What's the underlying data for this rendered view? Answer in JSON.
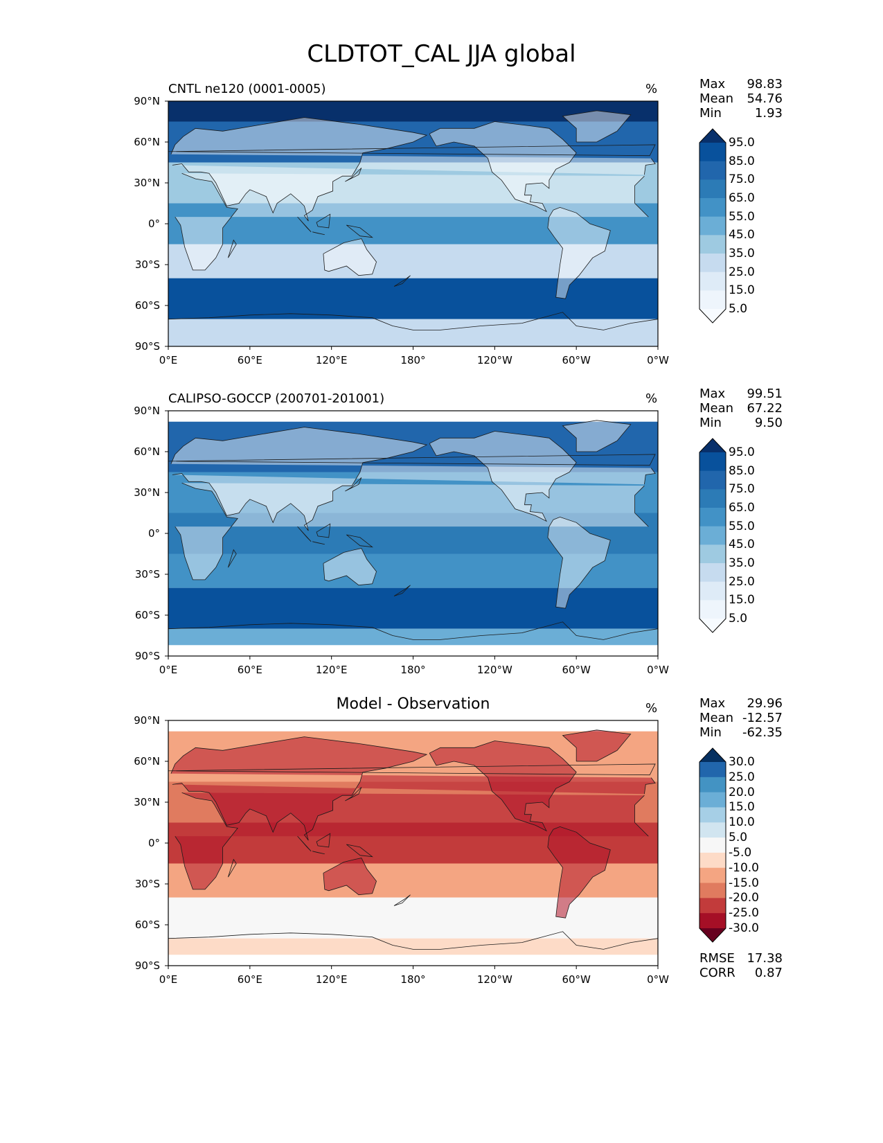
{
  "title": "CLDTOT_CAL JJA global",
  "x_ticks": [
    "0°E",
    "60°E",
    "120°E",
    "180°",
    "120°W",
    "60°W",
    "0°W"
  ],
  "y_ticks": [
    "90°N",
    "60°N",
    "30°N",
    "0°",
    "30°S",
    "60°S",
    "90°S"
  ],
  "panels": [
    {
      "title": "CNTL ne120 (0001-0005)",
      "unit": "%",
      "stats": [
        {
          "label": "Max",
          "value": "98.83"
        },
        {
          "label": "Mean",
          "value": "54.76"
        },
        {
          "label": "Min",
          "value": "1.93"
        }
      ],
      "colorbar": {
        "labels": [
          "95.0",
          "85.0",
          "75.0",
          "65.0",
          "55.0",
          "45.0",
          "35.0",
          "25.0",
          "15.0",
          "5.0"
        ],
        "colors": [
          "#08306b",
          "#08519c",
          "#2166ac",
          "#2c7bb6",
          "#4292c6",
          "#6baed6",
          "#9ecae1",
          "#c6dbef",
          "#deebf7",
          "#eef5fc",
          "#f7fbff"
        ]
      }
    },
    {
      "title": "CALIPSO-GOCCP (200701-201001)",
      "unit": "%",
      "stats": [
        {
          "label": "Max",
          "value": "99.51"
        },
        {
          "label": "Mean",
          "value": "67.22"
        },
        {
          "label": "Min",
          "value": "9.50"
        }
      ],
      "colorbar": {
        "labels": [
          "95.0",
          "85.0",
          "75.0",
          "65.0",
          "55.0",
          "45.0",
          "35.0",
          "25.0",
          "15.0",
          "5.0"
        ],
        "colors": [
          "#08306b",
          "#08519c",
          "#2166ac",
          "#2c7bb6",
          "#4292c6",
          "#6baed6",
          "#9ecae1",
          "#c6dbef",
          "#deebf7",
          "#eef5fc",
          "#f7fbff"
        ]
      }
    },
    {
      "title": "Model - Observation",
      "unit": "%",
      "stats": [
        {
          "label": "Max",
          "value": "29.96"
        },
        {
          "label": "Mean",
          "value": "-12.57"
        },
        {
          "label": "Min",
          "value": "-62.35"
        }
      ],
      "extra_stats": [
        {
          "label": "RMSE",
          "value": "17.38"
        },
        {
          "label": "CORR",
          "value": "0.87"
        }
      ],
      "colorbar": {
        "labels": [
          "30.0",
          "25.0",
          "20.0",
          "15.0",
          "10.0",
          "5.0",
          "-5.0",
          "-10.0",
          "-15.0",
          "-20.0",
          "-25.0",
          "-30.0"
        ],
        "colors": [
          "#053061",
          "#2166ac",
          "#4393c3",
          "#6baed6",
          "#a6cfe6",
          "#d1e5f0",
          "#f7f7f7",
          "#fddbc7",
          "#f4a582",
          "#e07b5f",
          "#c23b3b",
          "#a50f26",
          "#67001f"
        ]
      }
    }
  ],
  "chart_data": [
    {
      "type": "heatmap",
      "title": "CNTL ne120 (0001-0005)",
      "variable": "CLDTOT_CAL",
      "season": "JJA",
      "units": "%",
      "xlim": [
        0,
        360
      ],
      "ylim": [
        -90,
        90
      ],
      "levels": [
        5,
        15,
        25,
        35,
        45,
        55,
        65,
        75,
        85,
        95
      ],
      "stats": {
        "max": 98.83,
        "mean": 54.76,
        "min": 1.93
      },
      "bands": [
        {
          "lat_range": [
            75,
            90
          ],
          "value": 97
        },
        {
          "lat_range": [
            45,
            75
          ],
          "value": 75
        },
        {
          "lat_range": [
            15,
            45
          ],
          "value": 35
        },
        {
          "lat_range": [
            -15,
            15
          ],
          "value": 55
        },
        {
          "lat_range": [
            -40,
            -15
          ],
          "value": 30
        },
        {
          "lat_range": [
            -70,
            -40
          ],
          "value": 85
        },
        {
          "lat_range": [
            -90,
            -70
          ],
          "value": 25
        }
      ]
    },
    {
      "type": "heatmap",
      "title": "CALIPSO-GOCCP (200701-201001)",
      "units": "%",
      "xlim": [
        0,
        360
      ],
      "ylim": [
        -90,
        90
      ],
      "levels": [
        5,
        15,
        25,
        35,
        45,
        55,
        65,
        75,
        85,
        95
      ],
      "stats": {
        "max": 99.51,
        "mean": 67.22,
        "min": 9.5
      },
      "bands": [
        {
          "lat_range": [
            45,
            82
          ],
          "value": 78
        },
        {
          "lat_range": [
            15,
            45
          ],
          "value": 55
        },
        {
          "lat_range": [
            -15,
            15
          ],
          "value": 65
        },
        {
          "lat_range": [
            -40,
            -15
          ],
          "value": 55
        },
        {
          "lat_range": [
            -70,
            -40
          ],
          "value": 85
        },
        {
          "lat_range": [
            -82,
            -70
          ],
          "value": 45
        }
      ]
    },
    {
      "type": "heatmap",
      "title": "Model - Observation",
      "units": "%",
      "xlim": [
        0,
        360
      ],
      "ylim": [
        -90,
        90
      ],
      "levels": [
        -30,
        -25,
        -20,
        -15,
        -10,
        -5,
        5,
        10,
        15,
        20,
        25,
        30
      ],
      "stats": {
        "max": 29.96,
        "mean": -12.57,
        "min": -62.35,
        "rmse": 17.38,
        "corr": 0.87
      },
      "bands": [
        {
          "lat_range": [
            45,
            82
          ],
          "value": -12
        },
        {
          "lat_range": [
            15,
            45
          ],
          "value": -20
        },
        {
          "lat_range": [
            -15,
            15
          ],
          "value": -22
        },
        {
          "lat_range": [
            -40,
            -15
          ],
          "value": -15
        },
        {
          "lat_range": [
            -70,
            -40
          ],
          "value": 0
        },
        {
          "lat_range": [
            -82,
            -70
          ],
          "value": -10
        }
      ]
    }
  ]
}
